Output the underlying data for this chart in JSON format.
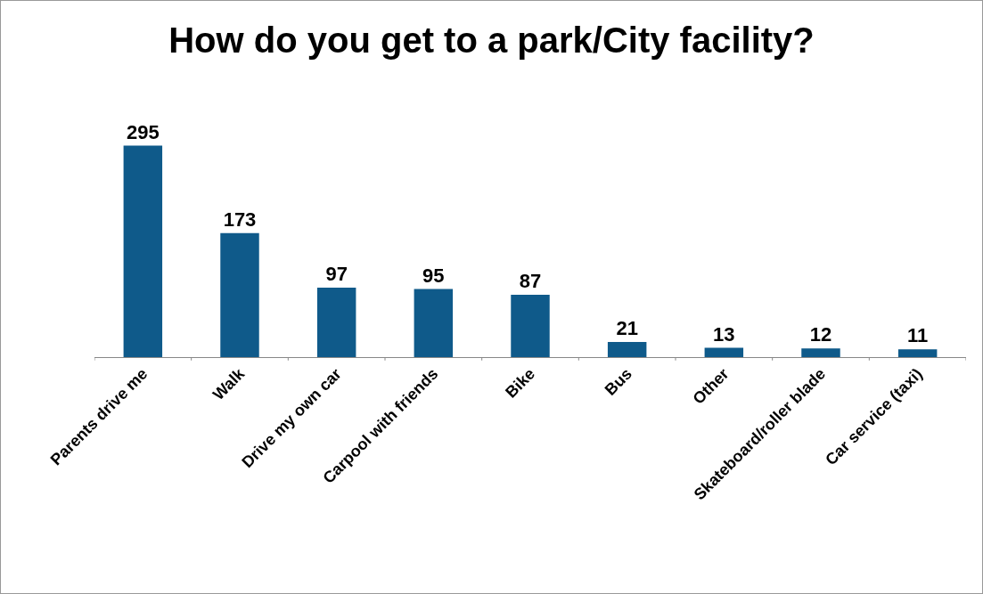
{
  "chart_data": {
    "type": "bar",
    "title": "How do you get to a park/City facility?",
    "categories": [
      "Parents drive me",
      "Walk",
      "Drive my own car",
      "Carpool with friends",
      "Bike",
      "Bus",
      "Other",
      "Skateboard/roller blade",
      "Car service (taxi)"
    ],
    "values": [
      295,
      173,
      97,
      95,
      87,
      21,
      13,
      12,
      11
    ],
    "color": "#0f5a8a",
    "data_labels": true
  }
}
